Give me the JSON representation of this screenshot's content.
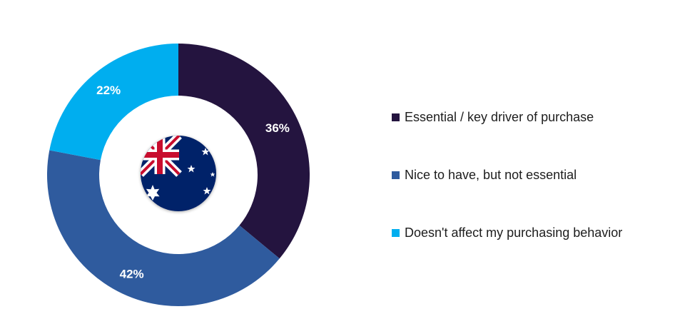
{
  "chart_data": {
    "type": "pie",
    "variant": "donut",
    "title": "",
    "categories": [
      "Essential / key driver of purchase",
      "Nice to have, but not essential",
      "Doesn't affect my purchasing behavior"
    ],
    "values": [
      36,
      42,
      22
    ],
    "data_labels": [
      "36%",
      "42%",
      "22%"
    ],
    "colors": [
      "#24143f",
      "#2f5b9e",
      "#00aeef"
    ],
    "start_angle": "top (12 o'clock), clockwise",
    "legend_position": "right",
    "center_icon": "australia-flag-icon"
  }
}
